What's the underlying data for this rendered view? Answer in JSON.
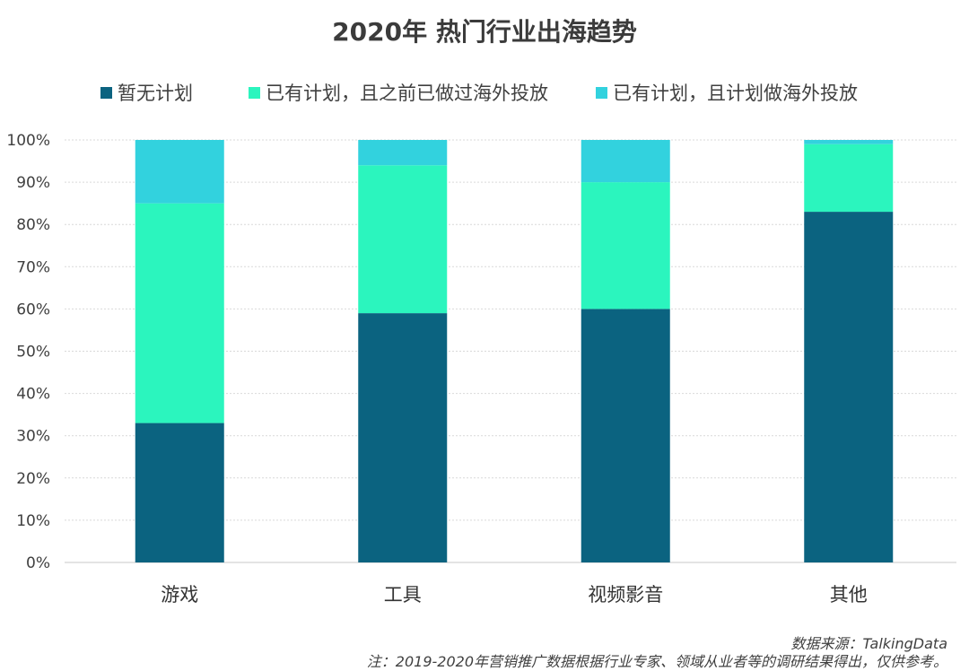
{
  "chart_data": {
    "type": "bar",
    "stacked": true,
    "title": "2020年  热门行业出海趋势",
    "categories": [
      "游戏",
      "工具",
      "视频影音",
      "其他"
    ],
    "series": [
      {
        "name": "暂无计划",
        "color": "#0b6380",
        "values": [
          33,
          59,
          60,
          83
        ]
      },
      {
        "name": "已有计划，且之前已做过海外投放",
        "color": "#2bf5be",
        "values": [
          52,
          35,
          30,
          16
        ]
      },
      {
        "name": "已有计划，且计划做海外投放",
        "color": "#32d2de",
        "values": [
          15,
          6,
          10,
          1
        ]
      }
    ],
    "ylim": [
      0,
      100
    ],
    "yticks": [
      "0%",
      "10%",
      "20%",
      "30%",
      "40%",
      "50%",
      "60%",
      "70%",
      "80%",
      "90%",
      "100%"
    ],
    "grid": true,
    "legend_position": "top"
  },
  "notes": {
    "source": "数据来源：TalkingData",
    "footnote": "注：2019-2020年营销推广数据根据行业专家、领域从业者等的调研结果得出，仅供参考。"
  }
}
